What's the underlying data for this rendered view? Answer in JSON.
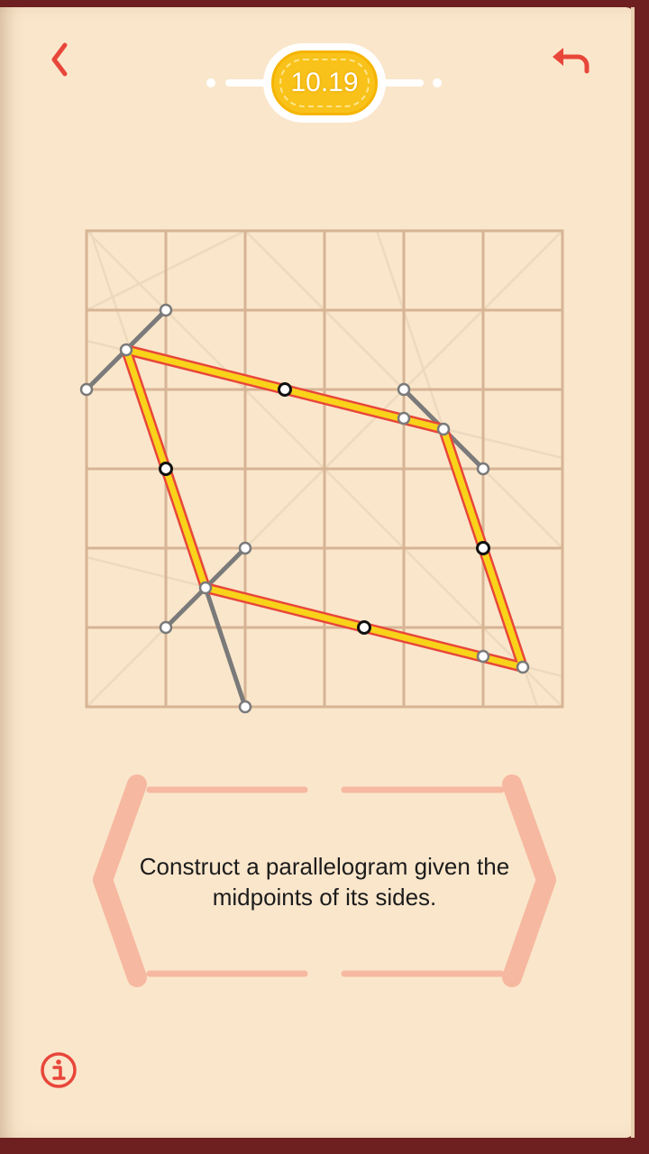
{
  "header": {
    "level_label": "10.19",
    "back_icon": "chevron-left-icon",
    "undo_icon": "undo-arrow-icon",
    "accent_color": "#e8463a",
    "badge_color": "#f9c21a"
  },
  "board": {
    "grid": "6x6",
    "line_color": "#d6b494",
    "shape_color": "#f9d21a",
    "shape_edge_color": "#e8463a",
    "given_points": [
      "midpoint-top",
      "midpoint-left",
      "midpoint-right",
      "midpoint-bottom"
    ]
  },
  "task": {
    "text": "Construct a parallelogram given the midpoints of its sides."
  },
  "footer": {
    "info_icon": "info-icon"
  }
}
